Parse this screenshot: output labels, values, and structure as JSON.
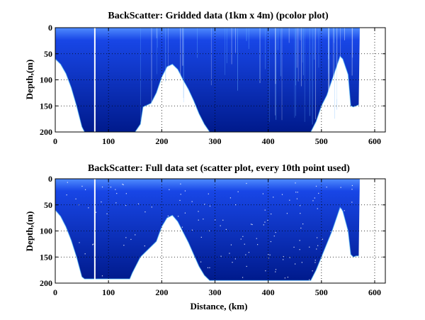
{
  "chart_data": [
    {
      "type": "heatmap",
      "title": "BackScatter: Gridded data (1km x 4m) (pcolor plot)",
      "xlabel": "",
      "ylabel": "Depth,(m)",
      "xlim": [
        0,
        620
      ],
      "ylim": [
        200,
        0
      ],
      "y_reversed": true,
      "xticks": [
        0,
        100,
        200,
        300,
        400,
        500,
        600
      ],
      "yticks": [
        0,
        50,
        100,
        150,
        200
      ],
      "grid": true,
      "colormap": "jet",
      "colors": {
        "fill": "#0a2cc0",
        "deep": "#001a8c",
        "mid": "#1846e6",
        "highlight": "#56c8ff",
        "surface": "#4f8cff"
      },
      "data_extent_x": [
        0,
        572
      ],
      "bottom_profile": {
        "x": [
          0,
          10,
          20,
          30,
          40,
          50,
          55,
          75,
          150,
          160,
          165,
          180,
          190,
          200,
          210,
          220,
          230,
          240,
          250,
          260,
          270,
          280,
          290,
          300,
          480,
          490,
          500,
          510,
          520,
          530,
          535,
          540,
          550,
          555,
          560,
          565,
          570
        ],
        "depth": [
          60,
          70,
          88,
          115,
          150,
          190,
          200,
          200,
          200,
          185,
          152,
          145,
          125,
          95,
          75,
          70,
          80,
          100,
          118,
          140,
          165,
          185,
          200,
          200,
          200,
          180,
          150,
          130,
          100,
          70,
          55,
          60,
          90,
          150,
          152,
          150,
          148
        ]
      },
      "vertical_gaps": [
        73,
        75
      ]
    },
    {
      "type": "scatter",
      "title": "BackScatter: Full data set (scatter plot, every 10th point used)",
      "xlabel": "Distance, (km)",
      "ylabel": "Depth,(m)",
      "xlim": [
        0,
        620
      ],
      "ylim": [
        200,
        0
      ],
      "y_reversed": true,
      "xticks": [
        0,
        100,
        200,
        300,
        400,
        500,
        600
      ],
      "yticks": [
        0,
        50,
        100,
        150,
        200
      ],
      "grid": true,
      "colormap": "jet",
      "colors": {
        "fill": "#0a2cc0",
        "deep": "#001a8c",
        "mid": "#1846e6",
        "highlight": "#56c8ff",
        "surface": "#4f8cff"
      },
      "data_extent_x": [
        0,
        572
      ],
      "bottom_profile": {
        "x": [
          0,
          10,
          20,
          30,
          40,
          50,
          55,
          75,
          80,
          140,
          145,
          160,
          170,
          175,
          190,
          200,
          210,
          220,
          230,
          240,
          250,
          260,
          270,
          280,
          290,
          480,
          490,
          500,
          510,
          520,
          530,
          535,
          540,
          550,
          555,
          560,
          565,
          570
        ],
        "depth": [
          60,
          72,
          92,
          118,
          150,
          188,
          192,
          192,
          192,
          192,
          180,
          150,
          140,
          135,
          120,
          92,
          75,
          70,
          82,
          102,
          122,
          145,
          168,
          185,
          195,
          195,
          175,
          150,
          125,
          100,
          70,
          55,
          62,
          100,
          145,
          150,
          148,
          148
        ]
      },
      "vertical_gaps": [
        73,
        75
      ]
    }
  ]
}
